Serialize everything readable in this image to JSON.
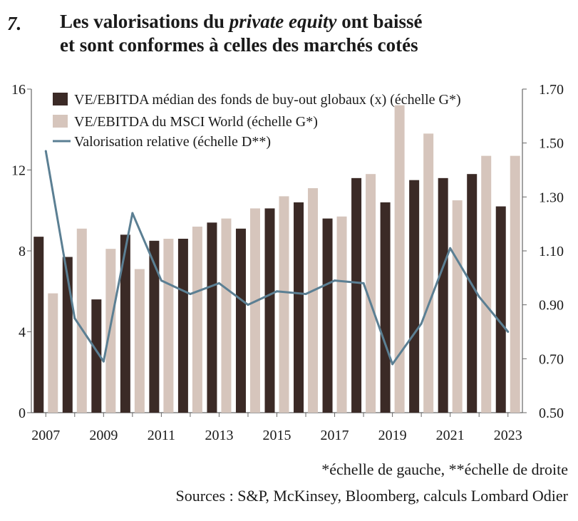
{
  "figure": {
    "number": "7.",
    "title_part1": "Les valorisations du ",
    "title_italic": "private equity",
    "title_part2": " ont baissé",
    "title_line2": "et sont conformes à celles des marchés cotés"
  },
  "footnotes": {
    "scale_note": "*échelle de gauche, **échelle de droite",
    "sources": "Sources : S&P, McKinsey, Bloomberg, calculs Lombard Odier"
  },
  "colors": {
    "buyout": "#3b2a26",
    "msci": "#d6c5bc",
    "relative": "#5b7f93",
    "axis": "#666666",
    "text": "#1a1a1a"
  },
  "chart_data": {
    "type": "bar",
    "x": [
      2007,
      2008,
      2009,
      2010,
      2011,
      2012,
      2013,
      2014,
      2015,
      2016,
      2017,
      2018,
      2019,
      2020,
      2021,
      2022,
      2023
    ],
    "x_tick_labels": [
      "2007",
      "2009",
      "2011",
      "2013",
      "2015",
      "2017",
      "2019",
      "2021",
      "2023"
    ],
    "y_left": {
      "range": [
        0,
        16
      ],
      "ticks": [
        "0",
        "4",
        "8",
        "12",
        "16"
      ]
    },
    "y_right": {
      "range": [
        0.5,
        1.7
      ],
      "ticks": [
        "0.50",
        "0.70",
        "0.90",
        "1.10",
        "1.30",
        "1.50",
        "1.70"
      ]
    },
    "grid": false,
    "legend_position": "top-left",
    "series": [
      {
        "name": "VE/EBITDA médian des fonds de buy-out globaux (x) (échelle G*)",
        "type": "bar",
        "axis": "left",
        "values": [
          8.7,
          7.7,
          5.6,
          8.8,
          8.5,
          8.6,
          9.4,
          9.1,
          10.1,
          10.4,
          9.6,
          11.6,
          10.4,
          11.5,
          11.6,
          11.8,
          10.2
        ]
      },
      {
        "name": "VE/EBITDA du MSCI World (échelle G*)",
        "type": "bar",
        "axis": "left",
        "values": [
          5.9,
          9.1,
          8.1,
          7.1,
          8.6,
          9.2,
          9.6,
          10.1,
          10.7,
          11.1,
          9.7,
          11.8,
          15.2,
          13.8,
          10.5,
          12.7,
          12.7
        ]
      },
      {
        "name": "Valorisation relative (échelle D**)",
        "type": "line",
        "axis": "right",
        "values": [
          1.47,
          0.85,
          0.69,
          1.24,
          0.99,
          0.94,
          0.98,
          0.9,
          0.95,
          0.94,
          0.99,
          0.98,
          0.68,
          0.83,
          1.11,
          0.93,
          0.8
        ]
      }
    ]
  }
}
